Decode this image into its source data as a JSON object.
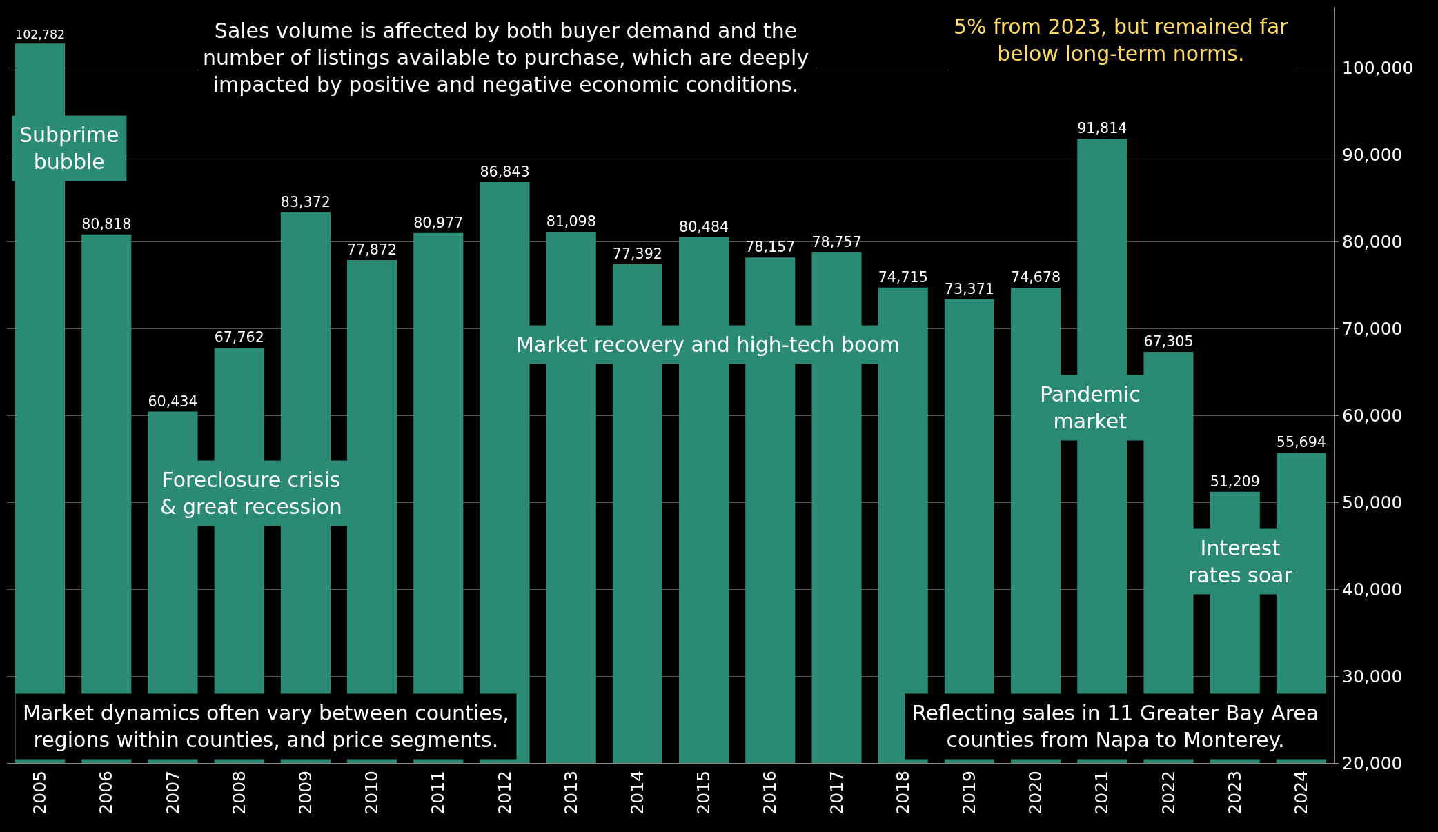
{
  "chart_data": {
    "type": "bar",
    "categories": [
      "2005",
      "2006",
      "2007",
      "2008",
      "2009",
      "2010",
      "2011",
      "2012",
      "2013",
      "2014",
      "2015",
      "2016",
      "2017",
      "2018",
      "2019",
      "2020",
      "2021",
      "2022",
      "2023",
      "2024"
    ],
    "values": [
      102782,
      80818,
      60434,
      67762,
      83372,
      77872,
      80977,
      86843,
      81098,
      77392,
      80484,
      78157,
      78757,
      74715,
      73371,
      74678,
      91814,
      67305,
      51209,
      55694
    ],
    "value_labels": [
      "102,782",
      "80,818",
      "60,434",
      "67,762",
      "83,372",
      "77,872",
      "80,977",
      "86,843",
      "81,098",
      "77,392",
      "80,484",
      "78,157",
      "78,757",
      "74,715",
      "73,371",
      "74,678",
      "91,814",
      "67,305",
      "51,209",
      "55,694"
    ],
    "color": "#2a8a74",
    "ylim": [
      20000,
      107000
    ],
    "yticks": [
      {
        "value": 20000,
        "label": "20,000"
      },
      {
        "value": 30000,
        "label": "30,000"
      },
      {
        "value": 40000,
        "label": "40,000"
      },
      {
        "value": 50000,
        "label": "50,000"
      },
      {
        "value": 60000,
        "label": "60,000"
      },
      {
        "value": 70000,
        "label": "70,000"
      },
      {
        "value": 80000,
        "label": "80,000"
      },
      {
        "value": 90000,
        "label": "90,000"
      },
      {
        "value": 100000,
        "label": "100,000"
      }
    ],
    "grid": "y",
    "annotations": [
      "Sales volume is affected by both buyer demand and the\nnumber of listings available to purchase, which are deeply\nimpacted by positive and negative economic conditions.",
      "5% from 2023, but remained far\nbelow long-term norms.",
      "Subprime\nbubble",
      "Foreclosure crisis\n& great recession",
      "Market recovery and high-tech boom",
      "Pandemic\nmarket",
      "Interest\nrates soar",
      "Market dynamics often vary between counties,\nregions within counties, and price segments.",
      "Reflecting sales in 11 Greater Bay Area\ncounties from Napa to Monterey."
    ]
  }
}
